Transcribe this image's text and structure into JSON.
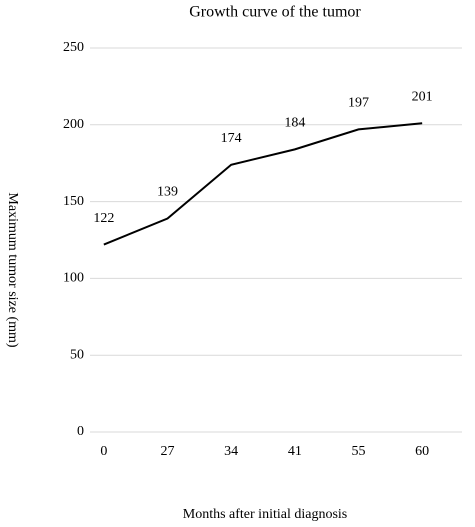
{
  "chart_data": {
    "type": "line",
    "title": "Growth curve of the tumor",
    "x_label": "Months after initial diagnosis",
    "y_label": "Maximum tumor size (mm)",
    "categories": [
      "0",
      "27",
      "34",
      "41",
      "55",
      "60"
    ],
    "values": [
      122,
      139,
      174,
      184,
      197,
      201
    ],
    "color": "#000000",
    "ylim": [
      0,
      250
    ],
    "yticks": [
      0,
      50,
      100,
      150,
      200,
      250
    ],
    "grid": true
  }
}
